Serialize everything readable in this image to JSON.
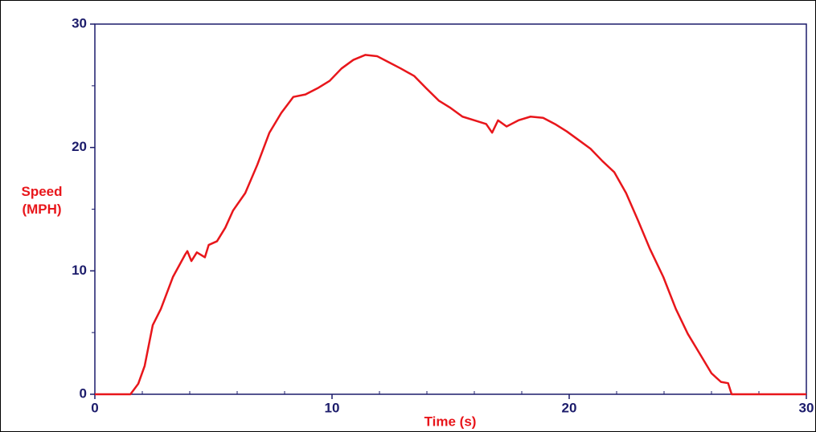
{
  "chart_data": {
    "type": "line",
    "xlabel": "Time (s)",
    "ylabel": "Speed (MPH)",
    "x": [
      0,
      1.5,
      1.83,
      2.1,
      2.44,
      2.78,
      3.29,
      3.8,
      3.9,
      4.07,
      4.3,
      4.64,
      4.8,
      5.15,
      5.5,
      5.83,
      6.34,
      6.85,
      7.36,
      7.86,
      8.37,
      8.88,
      9.39,
      9.9,
      10.4,
      10.9,
      11.4,
      11.9,
      12.4,
      12.9,
      13.46,
      13.97,
      14.5,
      15.0,
      15.5,
      16.0,
      16.5,
      16.75,
      17.0,
      17.36,
      17.86,
      18.37,
      18.9,
      19.4,
      19.9,
      20.4,
      20.9,
      21.4,
      21.9,
      22.4,
      22.9,
      23.4,
      23.97,
      24.5,
      25.0,
      25.5,
      26.0,
      26.4,
      26.7,
      26.85,
      30
    ],
    "series": [
      {
        "name": "Speed",
        "color": "#e8161b",
        "values": [
          0,
          0,
          0.85,
          2.3,
          5.6,
          6.9,
          9.5,
          11.3,
          11.6,
          10.8,
          11.5,
          11.1,
          12.1,
          12.4,
          13.5,
          14.9,
          16.3,
          18.6,
          21.2,
          22.8,
          24.1,
          24.3,
          24.8,
          25.4,
          26.4,
          27.1,
          27.5,
          27.4,
          26.9,
          26.4,
          25.8,
          24.8,
          23.8,
          23.2,
          22.5,
          22.2,
          21.9,
          21.2,
          22.2,
          21.7,
          22.2,
          22.5,
          22.4,
          21.9,
          21.3,
          20.6,
          19.9,
          18.9,
          18.0,
          16.3,
          14.1,
          11.8,
          9.5,
          6.9,
          4.9,
          3.3,
          1.7,
          1.0,
          0.9,
          0,
          0
        ]
      }
    ],
    "xlim": [
      0,
      30
    ],
    "ylim": [
      0,
      30
    ],
    "xticks": [
      0,
      10,
      20,
      30
    ],
    "yticks": [
      0,
      10,
      20,
      30
    ],
    "xminorticks": [
      2,
      4,
      6,
      8,
      12,
      14,
      16,
      18,
      22,
      24,
      26,
      28
    ],
    "yminorticks": [
      5,
      15,
      25
    ],
    "axis_color": "#1c1c6b",
    "label_color": "#e8161b",
    "grid": false
  }
}
